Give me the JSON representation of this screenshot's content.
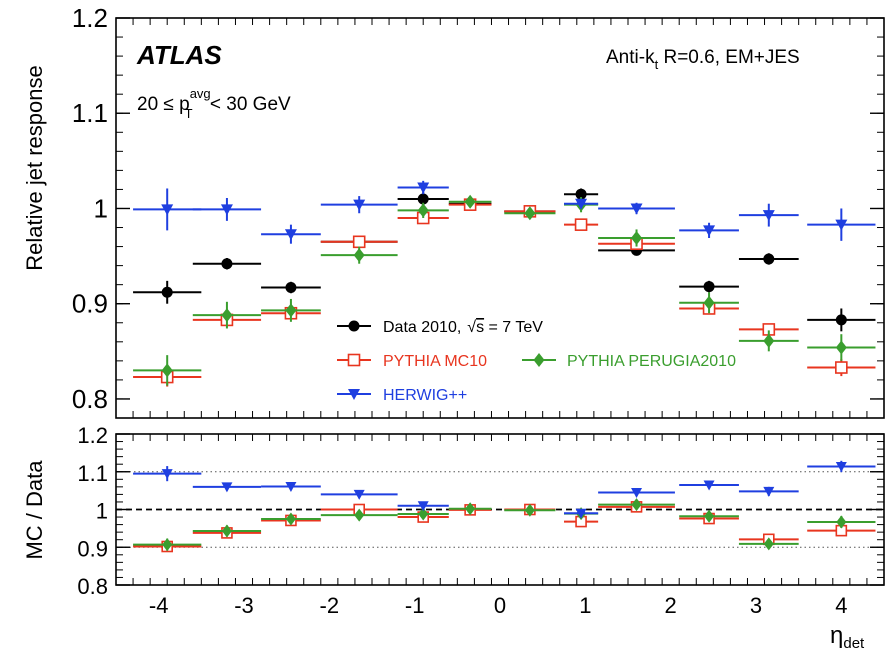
{
  "chart_data": [
    {
      "type": "scatter",
      "panel": "main",
      "experiment_label": "ATLAS",
      "algorithm_label": "Anti-k",
      "algorithm_sub": "t",
      "algorithm_rest": " R=0.6, EM+JES",
      "cut_label_pre": "20 ≤ p",
      "cut_label_sub": "T",
      "cut_label_sup": "avg",
      "cut_label_post": " < 30 GeV",
      "ylabel": "Relative jet response",
      "xlabel": "η",
      "xlabel_sub": "det",
      "xlim": [
        -4.5,
        4.5
      ],
      "ylim": [
        0.78,
        1.2
      ],
      "yticks": [
        0.8,
        0.9,
        1.0,
        1.1,
        1.2
      ],
      "ytick_labels": [
        "0.8",
        "0.9",
        "1",
        "1.1",
        "1.2"
      ],
      "legend": {
        "data_label": "Data 2010,",
        "data_label_energy": " = 7 TeV",
        "sqrt_s": "s",
        "pythia_label": "PYTHIA MC10",
        "perugia_label": "PYTHIA PERUGIA2010",
        "herwig_label": "HERWIG++"
      },
      "series": [
        {
          "name": "Data 2010, √s = 7 TeV",
          "color": "#000000",
          "marker": "circle-filled",
          "points": [
            {
              "x": -3.9,
              "xerr": 0.4,
              "y": 0.912,
              "yerr": 0.012
            },
            {
              "x": -3.2,
              "xerr": 0.4,
              "y": 0.942,
              "yerr": 0.006
            },
            {
              "x": -2.45,
              "xerr": 0.35,
              "y": 0.917,
              "yerr": 0.006
            },
            {
              "x": -1.65,
              "xerr": 0.45,
              "y": 0.965,
              "yerr": 0.005
            },
            {
              "x": -0.9,
              "xerr": 0.3,
              "y": 1.01,
              "yerr": 0.007
            },
            {
              "x": -0.35,
              "xerr": 0.25,
              "y": 1.005,
              "yerr": 0.004
            },
            {
              "x": 0.35,
              "xerr": 0.3,
              "y": 0.997,
              "yerr": 0.004
            },
            {
              "x": 0.95,
              "xerr": 0.2,
              "y": 1.015,
              "yerr": 0.006
            },
            {
              "x": 1.6,
              "xerr": 0.45,
              "y": 0.956,
              "yerr": 0.005
            },
            {
              "x": 2.45,
              "xerr": 0.35,
              "y": 0.918,
              "yerr": 0.006
            },
            {
              "x": 3.15,
              "xerr": 0.35,
              "y": 0.947,
              "yerr": 0.006
            },
            {
              "x": 4.0,
              "xerr": 0.4,
              "y": 0.883,
              "yerr": 0.012
            }
          ]
        },
        {
          "name": "PYTHIA MC10",
          "color": "#e8351f",
          "marker": "square-open",
          "points": [
            {
              "x": -3.9,
              "xerr": 0.4,
              "y": 0.823,
              "yerr": 0.01
            },
            {
              "x": -3.2,
              "xerr": 0.4,
              "y": 0.883,
              "yerr": 0.007
            },
            {
              "x": -2.45,
              "xerr": 0.35,
              "y": 0.89,
              "yerr": 0.006
            },
            {
              "x": -1.65,
              "xerr": 0.45,
              "y": 0.965,
              "yerr": 0.004
            },
            {
              "x": -0.9,
              "xerr": 0.3,
              "y": 0.99,
              "yerr": 0.004
            },
            {
              "x": -0.35,
              "xerr": 0.25,
              "y": 1.004,
              "yerr": 0.003
            },
            {
              "x": 0.35,
              "xerr": 0.3,
              "y": 0.997,
              "yerr": 0.003
            },
            {
              "x": 0.95,
              "xerr": 0.2,
              "y": 0.983,
              "yerr": 0.004
            },
            {
              "x": 1.6,
              "xerr": 0.45,
              "y": 0.963,
              "yerr": 0.004
            },
            {
              "x": 2.45,
              "xerr": 0.35,
              "y": 0.895,
              "yerr": 0.006
            },
            {
              "x": 3.15,
              "xerr": 0.35,
              "y": 0.873,
              "yerr": 0.006
            },
            {
              "x": 4.0,
              "xerr": 0.4,
              "y": 0.833,
              "yerr": 0.009
            }
          ]
        },
        {
          "name": "PYTHIA PERUGIA2010",
          "color": "#3a9e2e",
          "marker": "diamond-filled",
          "points": [
            {
              "x": -3.9,
              "xerr": 0.4,
              "y": 0.83,
              "yerr": 0.016
            },
            {
              "x": -3.2,
              "xerr": 0.4,
              "y": 0.888,
              "yerr": 0.014
            },
            {
              "x": -2.45,
              "xerr": 0.35,
              "y": 0.893,
              "yerr": 0.012
            },
            {
              "x": -1.65,
              "xerr": 0.45,
              "y": 0.951,
              "yerr": 0.009
            },
            {
              "x": -0.9,
              "xerr": 0.3,
              "y": 0.998,
              "yerr": 0.008
            },
            {
              "x": -0.35,
              "xerr": 0.25,
              "y": 1.007,
              "yerr": 0.005
            },
            {
              "x": 0.35,
              "xerr": 0.3,
              "y": 0.995,
              "yerr": 0.005
            },
            {
              "x": 0.95,
              "xerr": 0.2,
              "y": 1.004,
              "yerr": 0.008
            },
            {
              "x": 1.6,
              "xerr": 0.45,
              "y": 0.969,
              "yerr": 0.009
            },
            {
              "x": 2.45,
              "xerr": 0.35,
              "y": 0.901,
              "yerr": 0.011
            },
            {
              "x": 3.15,
              "xerr": 0.35,
              "y": 0.861,
              "yerr": 0.011
            },
            {
              "x": 4.0,
              "xerr": 0.4,
              "y": 0.854,
              "yerr": 0.014
            }
          ]
        },
        {
          "name": "HERWIG++",
          "color": "#1f3fe0",
          "marker": "triangle-down-filled",
          "points": [
            {
              "x": -3.9,
              "xerr": 0.4,
              "y": 0.999,
              "yerr": 0.022
            },
            {
              "x": -3.2,
              "xerr": 0.4,
              "y": 0.999,
              "yerr": 0.012
            },
            {
              "x": -2.45,
              "xerr": 0.35,
              "y": 0.973,
              "yerr": 0.01
            },
            {
              "x": -1.65,
              "xerr": 0.45,
              "y": 1.004,
              "yerr": 0.009
            },
            {
              "x": -0.9,
              "xerr": 0.3,
              "y": 1.022,
              "yerr": 0.007
            },
            {
              "x": 0.95,
              "xerr": 0.2,
              "y": 1.005,
              "yerr": 0.005
            },
            {
              "x": 1.6,
              "xerr": 0.45,
              "y": 1.0,
              "yerr": 0.006
            },
            {
              "x": 2.45,
              "xerr": 0.35,
              "y": 0.977,
              "yerr": 0.008
            },
            {
              "x": 3.15,
              "xerr": 0.35,
              "y": 0.993,
              "yerr": 0.012
            },
            {
              "x": 4.0,
              "xerr": 0.4,
              "y": 0.983,
              "yerr": 0.017
            }
          ]
        }
      ]
    },
    {
      "type": "scatter",
      "panel": "ratio",
      "ylabel": "MC / Data",
      "xlim": [
        -4.5,
        4.5
      ],
      "ylim": [
        0.8,
        1.2
      ],
      "yticks": [
        0.8,
        0.9,
        1.0,
        1.1,
        1.2
      ],
      "ytick_labels": [
        "0.8",
        "0.9",
        "1",
        "1.1",
        "1.2"
      ],
      "xticks": [
        -4,
        -3,
        -2,
        -1,
        0,
        1,
        2,
        3,
        4
      ],
      "xtick_labels": [
        "-4",
        "-3",
        "-2",
        "-1",
        "0",
        "1",
        "2",
        "3",
        "4"
      ],
      "reference_lines": {
        "dashed": 1.0,
        "dotted": [
          0.9,
          1.1
        ]
      },
      "series": [
        {
          "name": "PYTHIA MC10",
          "color": "#e8351f",
          "marker": "square-open",
          "points": [
            {
              "x": -3.9,
              "xerr": 0.4,
              "y": 0.902,
              "yerr": 0.01
            },
            {
              "x": -3.2,
              "xerr": 0.4,
              "y": 0.938,
              "yerr": 0.008
            },
            {
              "x": -2.45,
              "xerr": 0.35,
              "y": 0.971,
              "yerr": 0.007
            },
            {
              "x": -1.65,
              "xerr": 0.45,
              "y": 1.0,
              "yerr": 0.005
            },
            {
              "x": -0.9,
              "xerr": 0.3,
              "y": 0.98,
              "yerr": 0.007
            },
            {
              "x": -0.35,
              "xerr": 0.25,
              "y": 0.999,
              "yerr": 0.004
            },
            {
              "x": 0.35,
              "xerr": 0.3,
              "y": 1.0,
              "yerr": 0.004
            },
            {
              "x": 0.95,
              "xerr": 0.2,
              "y": 0.968,
              "yerr": 0.007
            },
            {
              "x": 1.6,
              "xerr": 0.45,
              "y": 1.007,
              "yerr": 0.005
            },
            {
              "x": 2.45,
              "xerr": 0.35,
              "y": 0.976,
              "yerr": 0.007
            },
            {
              "x": 3.15,
              "xerr": 0.35,
              "y": 0.921,
              "yerr": 0.007
            },
            {
              "x": 4.0,
              "xerr": 0.4,
              "y": 0.944,
              "yerr": 0.011
            }
          ]
        },
        {
          "name": "PYTHIA PERUGIA2010",
          "color": "#3a9e2e",
          "marker": "diamond-filled",
          "points": [
            {
              "x": -3.9,
              "xerr": 0.4,
              "y": 0.907,
              "yerr": 0.016
            },
            {
              "x": -3.2,
              "xerr": 0.4,
              "y": 0.943,
              "yerr": 0.015
            },
            {
              "x": -2.45,
              "xerr": 0.35,
              "y": 0.975,
              "yerr": 0.013
            },
            {
              "x": -1.65,
              "xerr": 0.45,
              "y": 0.985,
              "yerr": 0.01
            },
            {
              "x": -0.9,
              "xerr": 0.3,
              "y": 0.988,
              "yerr": 0.009
            },
            {
              "x": -0.35,
              "xerr": 0.25,
              "y": 1.002,
              "yerr": 0.006
            },
            {
              "x": 0.35,
              "xerr": 0.3,
              "y": 0.998,
              "yerr": 0.006
            },
            {
              "x": 0.95,
              "xerr": 0.2,
              "y": 0.989,
              "yerr": 0.009
            },
            {
              "x": 1.6,
              "xerr": 0.45,
              "y": 1.013,
              "yerr": 0.01
            },
            {
              "x": 2.45,
              "xerr": 0.35,
              "y": 0.982,
              "yerr": 0.012
            },
            {
              "x": 3.15,
              "xerr": 0.35,
              "y": 0.909,
              "yerr": 0.012
            },
            {
              "x": 4.0,
              "xerr": 0.4,
              "y": 0.967,
              "yerr": 0.016
            }
          ]
        },
        {
          "name": "HERWIG++",
          "color": "#1f3fe0",
          "marker": "triangle-down-filled",
          "points": [
            {
              "x": -3.9,
              "xerr": 0.4,
              "y": 1.095,
              "yerr": 0.02
            },
            {
              "x": -3.2,
              "xerr": 0.4,
              "y": 1.06,
              "yerr": 0.01
            },
            {
              "x": -2.45,
              "xerr": 0.35,
              "y": 1.061,
              "yerr": 0.01
            },
            {
              "x": -1.65,
              "xerr": 0.45,
              "y": 1.04,
              "yerr": 0.008
            },
            {
              "x": -0.9,
              "xerr": 0.3,
              "y": 1.01,
              "yerr": 0.009
            },
            {
              "x": 0.95,
              "xerr": 0.2,
              "y": 0.99,
              "yerr": 0.006
            },
            {
              "x": 1.6,
              "xerr": 0.45,
              "y": 1.045,
              "yerr": 0.007
            },
            {
              "x": 2.45,
              "xerr": 0.35,
              "y": 1.065,
              "yerr": 0.009
            },
            {
              "x": 3.15,
              "xerr": 0.35,
              "y": 1.048,
              "yerr": 0.012
            },
            {
              "x": 4.0,
              "xerr": 0.4,
              "y": 1.114,
              "yerr": 0.015
            }
          ]
        }
      ]
    }
  ]
}
